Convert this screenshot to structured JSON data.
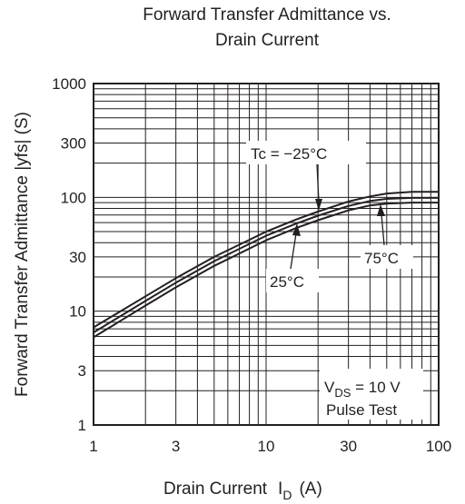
{
  "chart_data": {
    "type": "line",
    "title_line1": "Forward Transfer Admittance vs.",
    "title_line2": "Drain Current",
    "xlabel": {
      "main": "Drain Current",
      "symbol": "I",
      "sub": "D",
      "unit": "(A)"
    },
    "ylabel": "Forward Transfer Admittance   |yfs|  (S)",
    "x_scale": "log",
    "y_scale": "log",
    "xlim": [
      1,
      100
    ],
    "ylim": [
      1,
      1000
    ],
    "x_ticks": [
      1,
      3,
      10,
      30,
      100
    ],
    "x_tick_labels": [
      "1",
      "3",
      "10",
      "30",
      "100"
    ],
    "y_ticks": [
      1,
      3,
      10,
      30,
      100,
      300,
      1000
    ],
    "y_tick_labels": [
      "1",
      "3",
      "10",
      "30",
      "100",
      "300",
      "1000"
    ],
    "grid": true,
    "series": [
      {
        "name": "Tc = −25°C",
        "x": [
          1,
          2,
          3,
          5,
          10,
          15,
          20,
          30,
          40,
          50,
          70,
          100
        ],
        "y": [
          7.2,
          13.5,
          19.5,
          30,
          50,
          64,
          75,
          92,
          102,
          108,
          112,
          112
        ]
      },
      {
        "name": "25°C",
        "x": [
          1,
          2,
          3,
          5,
          10,
          15,
          20,
          30,
          40,
          50,
          70,
          100
        ],
        "y": [
          6.5,
          12.3,
          17.8,
          27.5,
          46,
          59,
          69,
          84,
          93,
          97,
          99,
          99
        ]
      },
      {
        "name": "75°C",
        "x": [
          1,
          2,
          3,
          5,
          10,
          15,
          20,
          30,
          40,
          50,
          70,
          100
        ],
        "y": [
          5.9,
          11.2,
          16.2,
          25,
          42,
          54,
          63,
          77,
          85,
          88,
          90,
          90
        ]
      }
    ],
    "annotations": {
      "tc": "Tc = −25°C",
      "t25": "25°C",
      "t75": "75°C",
      "vds_symbol": "V",
      "vds_sub": "DS",
      "vds_value": " = 10 V",
      "pulse": "Pulse Test"
    }
  }
}
